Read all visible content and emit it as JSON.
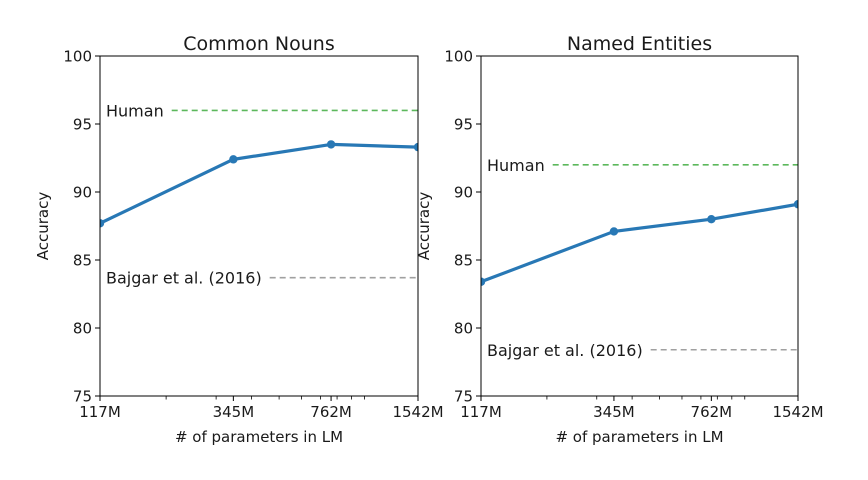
{
  "chart_data": [
    {
      "type": "line",
      "title": "Common Nouns",
      "xlabel": "# of parameters in LM",
      "ylabel": "Accuracy",
      "x_scale": "log",
      "categories": [
        "117M",
        "345M",
        "762M",
        "1542M"
      ],
      "x": [
        117,
        345,
        762,
        1542
      ],
      "ylim": [
        75,
        100
      ],
      "yticks": [
        "75",
        "80",
        "85",
        "90",
        "95",
        "100"
      ],
      "grid": false,
      "series": [
        {
          "values": [
            87.7,
            92.4,
            93.5,
            93.3
          ],
          "color": "#2878b5"
        }
      ],
      "reference_lines": [
        {
          "label": "Human",
          "y": 96.0,
          "color": "#5cb85c"
        },
        {
          "label": "Bajgar et al. (2016)",
          "y": 83.7,
          "color": "#a0a0a0"
        }
      ]
    },
    {
      "type": "line",
      "title": "Named Entities",
      "xlabel": "# of parameters in LM",
      "ylabel": "Accuracy",
      "x_scale": "log",
      "categories": [
        "117M",
        "345M",
        "762M",
        "1542M"
      ],
      "x": [
        117,
        345,
        762,
        1542
      ],
      "ylim": [
        75,
        100
      ],
      "yticks": [
        "75",
        "80",
        "85",
        "90",
        "95",
        "100"
      ],
      "grid": false,
      "series": [
        {
          "values": [
            83.4,
            87.1,
            88.0,
            89.1
          ],
          "color": "#2878b5"
        }
      ],
      "reference_lines": [
        {
          "label": "Human",
          "y": 92.0,
          "color": "#5cb85c"
        },
        {
          "label": "Bajgar et al. (2016)",
          "y": 78.4,
          "color": "#a0a0a0"
        }
      ]
    }
  ]
}
